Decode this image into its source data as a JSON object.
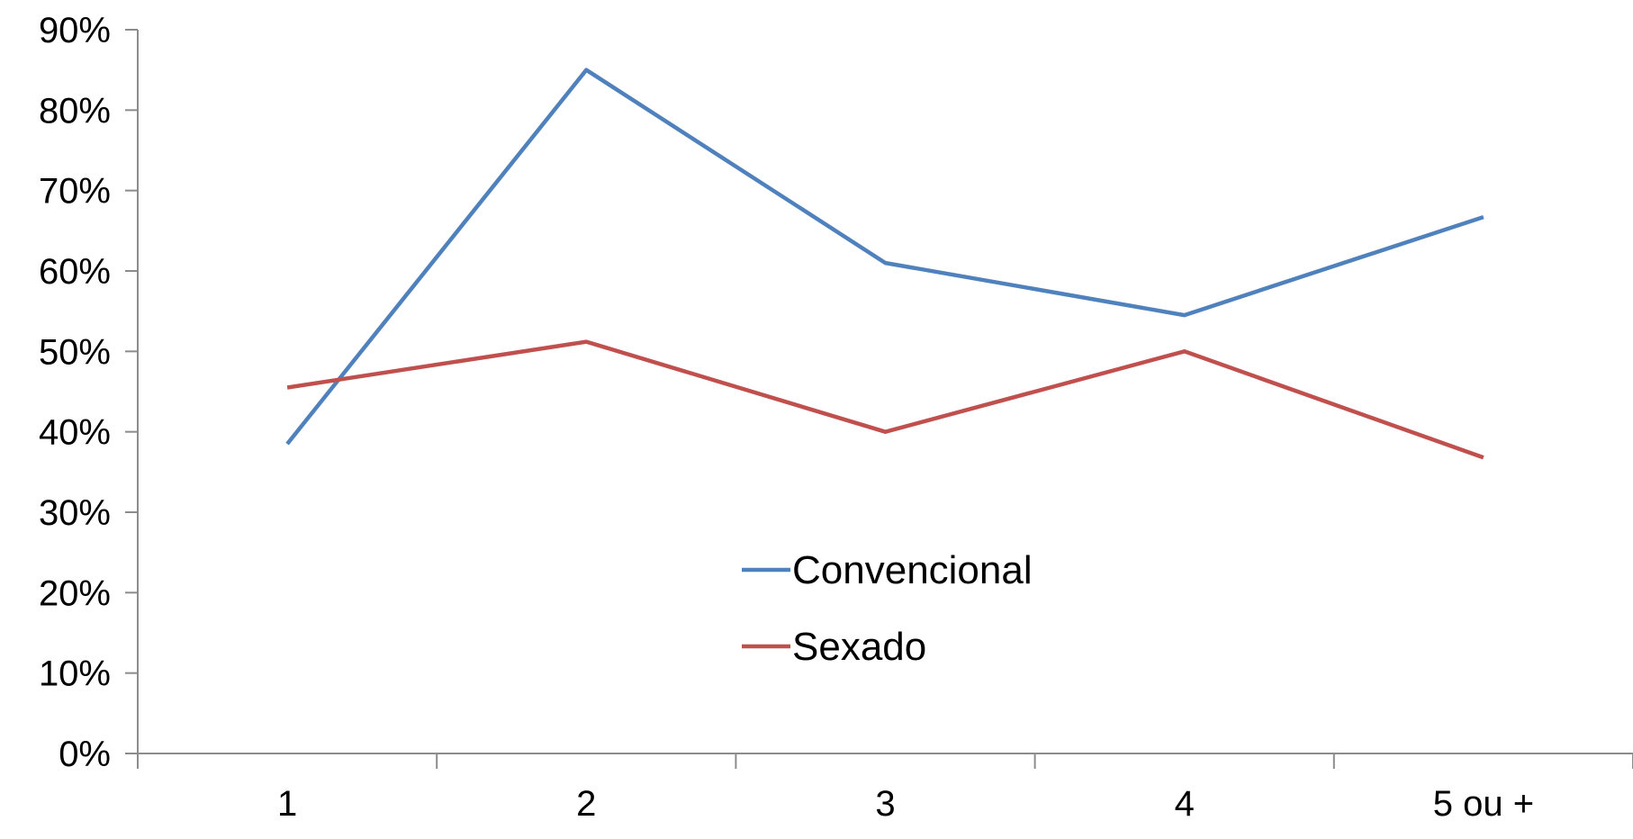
{
  "chart_data": {
    "type": "line",
    "title": "",
    "xlabel": "",
    "ylabel": "",
    "categories": [
      "1",
      "2",
      "3",
      "4",
      "5 ou +"
    ],
    "yticks": [
      "0%",
      "10%",
      "20%",
      "30%",
      "40%",
      "50%",
      "60%",
      "70%",
      "80%",
      "90%"
    ],
    "ylim": [
      0,
      90
    ],
    "grid": false,
    "legend_position": "center",
    "series": [
      {
        "name": "Convencional",
        "color": "#4F81BD",
        "values": [
          38.5,
          85,
          61,
          54.5,
          66.7
        ]
      },
      {
        "name": "Sexado",
        "color": "#C0504D",
        "values": [
          45.5,
          51.2,
          40,
          50,
          36.8
        ]
      }
    ]
  }
}
